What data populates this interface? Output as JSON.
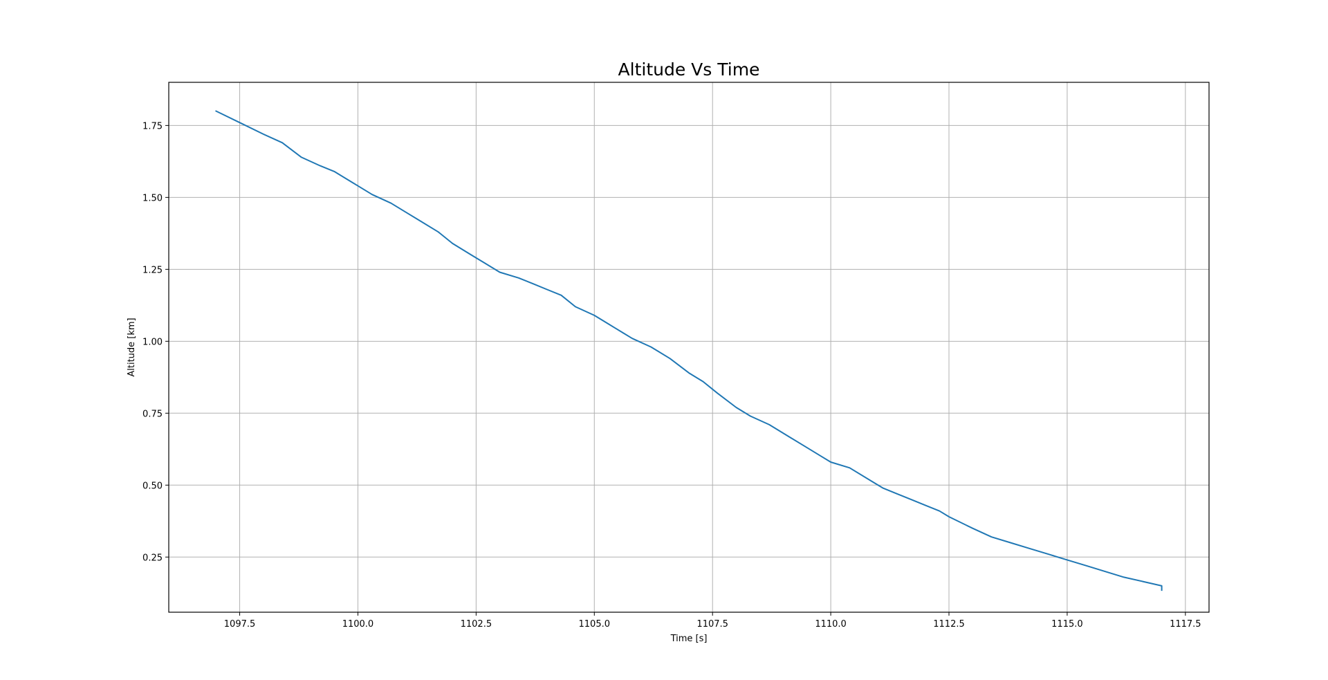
{
  "chart_data": {
    "type": "line",
    "title": "Altitude Vs Time",
    "xlabel": "Time [s]",
    "ylabel": "Altitude [km]",
    "xlim": [
      1096.0,
      1118.0
    ],
    "ylim": [
      0.0583,
      1.9
    ],
    "xticks": [
      1097.5,
      1100.0,
      1102.5,
      1105.0,
      1107.5,
      1110.0,
      1112.5,
      1115.0,
      1117.5
    ],
    "xtick_labels": [
      "1097.5",
      "1100.0",
      "1102.5",
      "1105.0",
      "1107.5",
      "1110.0",
      "1112.5",
      "1115.0",
      "1117.5"
    ],
    "yticks": [
      0.25,
      0.5,
      0.75,
      1.0,
      1.25,
      1.5,
      1.75
    ],
    "ytick_labels": [
      "0.25",
      "0.50",
      "0.75",
      "1.00",
      "1.25",
      "1.50",
      "1.75"
    ],
    "grid": true,
    "series_color": "#1f77b4",
    "series": [
      {
        "x": [
          1097.0,
          1097.5,
          1098.0,
          1098.4,
          1098.8,
          1099.2,
          1099.5,
          1099.8,
          1100.0,
          1100.3,
          1100.7,
          1101.0,
          1101.3,
          1101.7,
          1102.0,
          1102.4,
          1102.7,
          1103.0,
          1103.4,
          1103.7,
          1104.0,
          1104.3,
          1104.6,
          1105.0,
          1105.3,
          1105.6,
          1105.8,
          1106.2,
          1106.6,
          1107.0,
          1107.3,
          1107.6,
          1108.0,
          1108.3,
          1108.7,
          1109.1,
          1109.5,
          1109.8,
          1110.0,
          1110.4,
          1110.9,
          1111.1,
          1111.4,
          1111.7,
          1112.0,
          1112.3,
          1112.5,
          1113.0,
          1113.4,
          1113.8,
          1114.2,
          1114.6,
          1115.0,
          1115.4,
          1115.8,
          1116.2,
          1116.6,
          1117.0,
          1117.0
        ],
        "y": [
          1.8,
          1.76,
          1.72,
          1.69,
          1.64,
          1.61,
          1.59,
          1.56,
          1.54,
          1.51,
          1.48,
          1.45,
          1.42,
          1.38,
          1.34,
          1.3,
          1.27,
          1.24,
          1.22,
          1.2,
          1.18,
          1.16,
          1.12,
          1.09,
          1.06,
          1.03,
          1.01,
          0.98,
          0.94,
          0.89,
          0.86,
          0.82,
          0.77,
          0.74,
          0.71,
          0.67,
          0.63,
          0.6,
          0.58,
          0.56,
          0.51,
          0.49,
          0.47,
          0.45,
          0.43,
          0.41,
          0.39,
          0.35,
          0.32,
          0.3,
          0.28,
          0.26,
          0.24,
          0.22,
          0.2,
          0.18,
          0.165,
          0.15,
          0.135
        ]
      }
    ]
  }
}
